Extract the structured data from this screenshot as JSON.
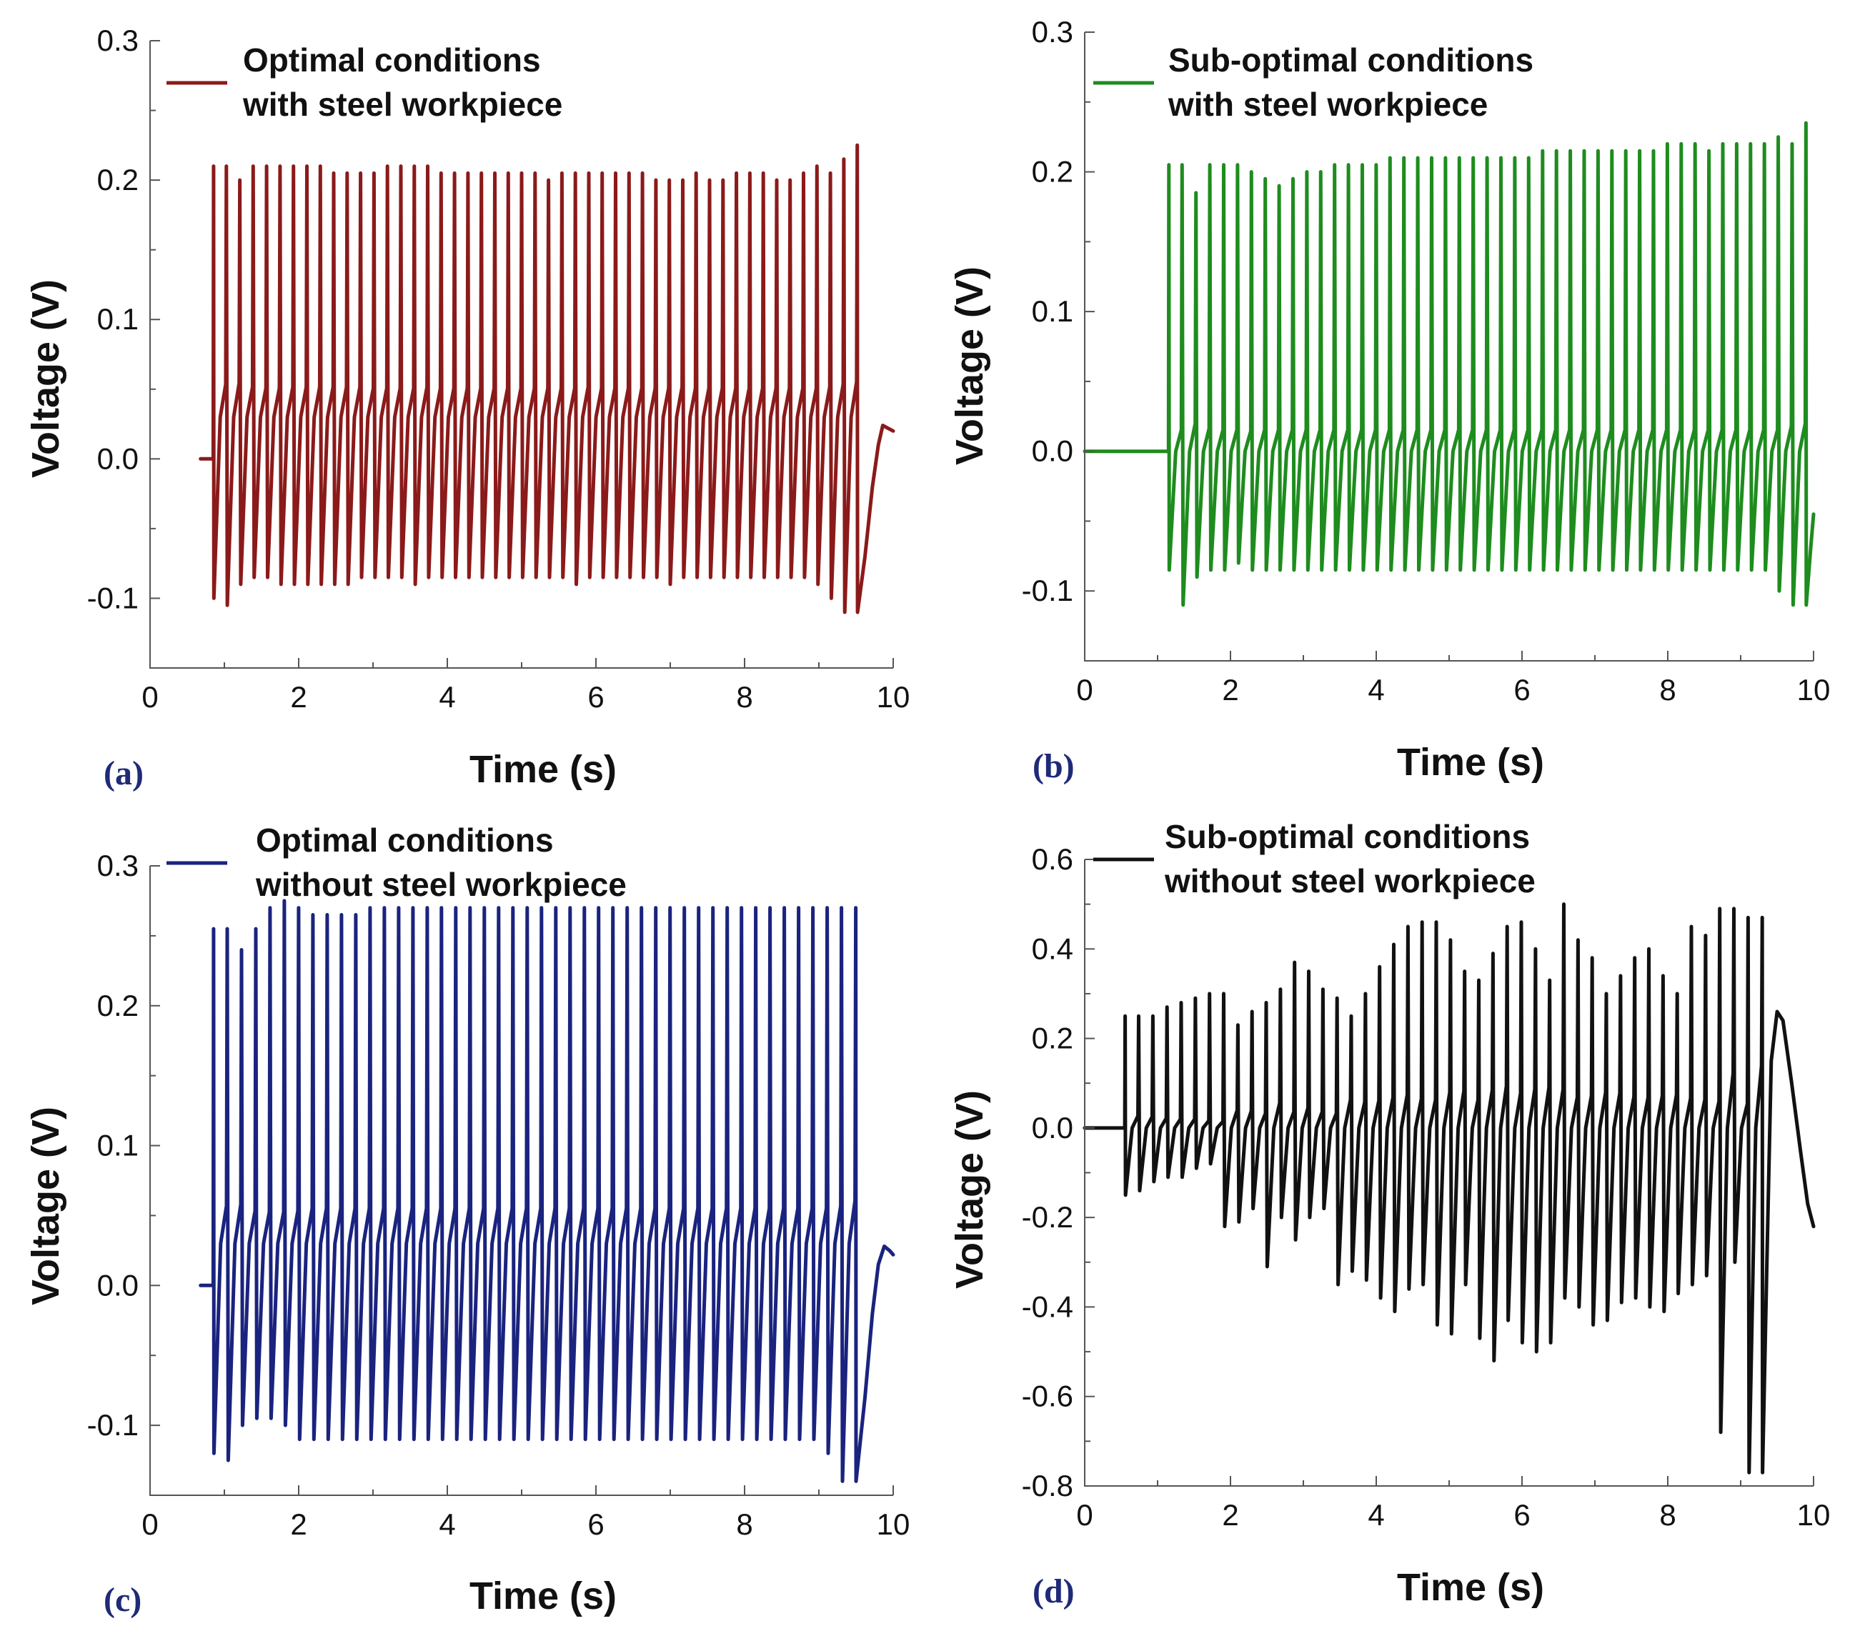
{
  "chart_data": [
    {
      "type": "line",
      "panel_label": "(a)",
      "xlabel": "Time (s)",
      "ylabel": "Voltage (V)",
      "xlim": [
        0,
        10
      ],
      "ylim": [
        -0.15,
        0.3
      ],
      "x_ticks": [
        "0",
        "2",
        "4",
        "6",
        "8",
        "10"
      ],
      "y_ticks": [
        "-0.1",
        "0.0",
        "0.1",
        "0.2",
        "0.3"
      ],
      "y_tick_values": [
        -0.1,
        0.0,
        0.1,
        0.2,
        0.3
      ],
      "color": "#8b1a1a",
      "legend": {
        "line1": "Optimal conditions",
        "line2": "with steel workpiece",
        "placement": "top-left"
      },
      "series": [
        {
          "name": "Optimal conditions with steel workpiece",
          "waveform": {
            "flat_start": 0.68,
            "flat_value": 0.0,
            "onset": 0.85,
            "end": 9.52,
            "pulse_count": 48,
            "first_peak": 0.21,
            "peaks": [
              0.21,
              0.2,
              0.21,
              0.21,
              0.21,
              0.21,
              0.21,
              0.21,
              0.205,
              0.205,
              0.205,
              0.205,
              0.21,
              0.21,
              0.21,
              0.21,
              0.205,
              0.205,
              0.205,
              0.205,
              0.205,
              0.205,
              0.205,
              0.205,
              0.2,
              0.205,
              0.205,
              0.205,
              0.205,
              0.205,
              0.205,
              0.205,
              0.2,
              0.2,
              0.2,
              0.205,
              0.2,
              0.2,
              0.205,
              0.205,
              0.205,
              0.2,
              0.2,
              0.205,
              0.21,
              0.205,
              0.215,
              0.225
            ],
            "mid_level": 0.03,
            "troughs": [
              -0.1,
              -0.105,
              -0.09,
              -0.085,
              -0.085,
              -0.09,
              -0.09,
              -0.09,
              -0.09,
              -0.09,
              -0.09,
              -0.085,
              -0.085,
              -0.085,
              -0.085,
              -0.09,
              -0.085,
              -0.085,
              -0.085,
              -0.085,
              -0.085,
              -0.085,
              -0.085,
              -0.085,
              -0.085,
              -0.085,
              -0.085,
              -0.09,
              -0.085,
              -0.085,
              -0.085,
              -0.085,
              -0.085,
              -0.085,
              -0.09,
              -0.085,
              -0.085,
              -0.085,
              -0.085,
              -0.085,
              -0.085,
              -0.085,
              -0.085,
              -0.085,
              -0.085,
              -0.09,
              -0.1,
              -0.11
            ],
            "tail": [
              [
                9.52,
                -0.11
              ],
              [
                9.62,
                -0.07
              ],
              [
                9.72,
                -0.02
              ],
              [
                9.8,
                0.01
              ],
              [
                9.86,
                0.024
              ],
              [
                9.93,
                0.022
              ],
              [
                10.0,
                0.02
              ]
            ]
          }
        }
      ]
    },
    {
      "type": "line",
      "panel_label": "(b)",
      "xlabel": "Time (s)",
      "ylabel": "Voltage (V)",
      "xlim": [
        0,
        10
      ],
      "ylim": [
        -0.15,
        0.3
      ],
      "x_ticks": [
        "0",
        "2",
        "4",
        "6",
        "8",
        "10"
      ],
      "y_ticks": [
        "-0.1",
        "0.0",
        "0.1",
        "0.2",
        "0.3"
      ],
      "y_tick_values": [
        -0.1,
        0.0,
        0.1,
        0.2,
        0.3
      ],
      "color": "#1e8c1e",
      "legend": {
        "line1": "Sub-optimal conditions",
        "line2": "with steel workpiece",
        "placement": "top-left"
      },
      "series": [
        {
          "name": "Sub-optimal conditions with steel workpiece",
          "waveform": {
            "flat_start": 0.0,
            "flat_value": 0.0,
            "onset": 1.15,
            "end": 9.9,
            "pulse_count": 46,
            "first_peak": 0.205,
            "peaks": [
              0.205,
              0.185,
              0.205,
              0.205,
              0.205,
              0.2,
              0.195,
              0.19,
              0.195,
              0.2,
              0.2,
              0.205,
              0.205,
              0.205,
              0.205,
              0.21,
              0.21,
              0.21,
              0.21,
              0.21,
              0.21,
              0.21,
              0.21,
              0.21,
              0.21,
              0.21,
              0.215,
              0.215,
              0.215,
              0.215,
              0.215,
              0.215,
              0.215,
              0.215,
              0.215,
              0.22,
              0.22,
              0.22,
              0.215,
              0.22,
              0.22,
              0.22,
              0.22,
              0.225,
              0.22,
              0.235
            ],
            "mid_level": 0.0,
            "troughs": [
              -0.085,
              -0.11,
              -0.09,
              -0.085,
              -0.085,
              -0.08,
              -0.085,
              -0.085,
              -0.085,
              -0.085,
              -0.085,
              -0.085,
              -0.085,
              -0.085,
              -0.085,
              -0.085,
              -0.085,
              -0.085,
              -0.085,
              -0.085,
              -0.085,
              -0.085,
              -0.085,
              -0.085,
              -0.085,
              -0.085,
              -0.085,
              -0.085,
              -0.085,
              -0.085,
              -0.085,
              -0.085,
              -0.085,
              -0.085,
              -0.085,
              -0.085,
              -0.085,
              -0.085,
              -0.085,
              -0.085,
              -0.085,
              -0.085,
              -0.085,
              -0.085,
              -0.1,
              -0.11
            ],
            "tail": [
              [
                9.9,
                -0.11
              ],
              [
                9.96,
                -0.07
              ],
              [
                10.0,
                -0.045
              ]
            ]
          }
        }
      ]
    },
    {
      "type": "line",
      "panel_label": "(c)",
      "xlabel": "Time (s)",
      "ylabel": "Voltage (V)",
      "xlim": [
        0,
        10
      ],
      "ylim": [
        -0.15,
        0.3
      ],
      "x_ticks": [
        "0",
        "2",
        "4",
        "6",
        "8",
        "10"
      ],
      "y_ticks": [
        "-0.1",
        "0.0",
        "0.1",
        "0.2",
        "0.3"
      ],
      "y_tick_values": [
        -0.1,
        0.0,
        0.1,
        0.2,
        0.3
      ],
      "color": "#1a237e",
      "legend": {
        "line1": "Optimal conditions",
        "line2": "without steel workpiece",
        "placement": "top-left"
      },
      "series": [
        {
          "name": "Optimal conditions without steel workpiece",
          "waveform": {
            "flat_start": 0.68,
            "flat_value": 0.0,
            "onset": 0.85,
            "end": 9.5,
            "pulse_count": 45,
            "first_peak": 0.255,
            "peaks": [
              0.255,
              0.24,
              0.255,
              0.27,
              0.275,
              0.27,
              0.265,
              0.265,
              0.265,
              0.265,
              0.27,
              0.27,
              0.27,
              0.27,
              0.27,
              0.27,
              0.27,
              0.27,
              0.27,
              0.27,
              0.27,
              0.27,
              0.27,
              0.27,
              0.27,
              0.27,
              0.27,
              0.27,
              0.27,
              0.27,
              0.27,
              0.27,
              0.27,
              0.27,
              0.27,
              0.27,
              0.27,
              0.27,
              0.27,
              0.27,
              0.27,
              0.27,
              0.27,
              0.27,
              0.27
            ],
            "mid_level": 0.03,
            "troughs": [
              -0.12,
              -0.125,
              -0.1,
              -0.095,
              -0.095,
              -0.1,
              -0.11,
              -0.11,
              -0.11,
              -0.11,
              -0.11,
              -0.11,
              -0.11,
              -0.11,
              -0.11,
              -0.11,
              -0.11,
              -0.11,
              -0.11,
              -0.11,
              -0.11,
              -0.11,
              -0.11,
              -0.11,
              -0.11,
              -0.11,
              -0.11,
              -0.11,
              -0.11,
              -0.11,
              -0.11,
              -0.11,
              -0.11,
              -0.11,
              -0.11,
              -0.11,
              -0.11,
              -0.11,
              -0.11,
              -0.11,
              -0.11,
              -0.11,
              -0.11,
              -0.12,
              -0.14
            ],
            "tail": [
              [
                9.5,
                -0.14
              ],
              [
                9.62,
                -0.08
              ],
              [
                9.72,
                -0.02
              ],
              [
                9.8,
                0.015
              ],
              [
                9.88,
                0.028
              ],
              [
                9.95,
                0.025
              ],
              [
                10.0,
                0.022
              ]
            ]
          }
        }
      ]
    },
    {
      "type": "line",
      "panel_label": "(d)",
      "xlabel": "Time (s)",
      "ylabel": "Voltage (V)",
      "xlim": [
        0,
        10
      ],
      "ylim": [
        -0.8,
        0.6
      ],
      "x_ticks": [
        "0",
        "2",
        "4",
        "6",
        "8",
        "10"
      ],
      "y_ticks": [
        "-0.8",
        "-0.6",
        "-0.4",
        "-0.2",
        "0.0",
        "0.2",
        "0.4",
        "0.6"
      ],
      "y_tick_values": [
        -0.8,
        -0.6,
        -0.4,
        -0.2,
        0.0,
        0.2,
        0.4,
        0.6
      ],
      "color": "#111111",
      "legend": {
        "line1": "Sub-optimal conditions",
        "line2": "without steel workpiece",
        "placement": "top-left"
      },
      "series": [
        {
          "name": "Sub-optimal conditions without steel workpiece",
          "waveform": {
            "flat_start": 0.0,
            "flat_value": 0.0,
            "onset": 0.55,
            "end": 9.3,
            "pulse_count": 45,
            "first_peak": 0.25,
            "peaks": [
              0.25,
              0.25,
              0.27,
              0.28,
              0.29,
              0.3,
              0.3,
              0.23,
              0.26,
              0.28,
              0.31,
              0.37,
              0.35,
              0.31,
              0.29,
              0.25,
              0.3,
              0.36,
              0.41,
              0.45,
              0.46,
              0.46,
              0.42,
              0.35,
              0.33,
              0.39,
              0.45,
              0.46,
              0.4,
              0.33,
              0.5,
              0.42,
              0.38,
              0.3,
              0.34,
              0.38,
              0.4,
              0.34,
              0.3,
              0.45,
              0.43,
              0.49,
              0.49,
              0.47,
              0.47
            ],
            "mid_level": 0.0,
            "troughs": [
              -0.15,
              -0.14,
              -0.12,
              -0.11,
              -0.11,
              -0.09,
              -0.08,
              -0.22,
              -0.21,
              -0.18,
              -0.31,
              -0.2,
              -0.25,
              -0.2,
              -0.18,
              -0.35,
              -0.32,
              -0.34,
              -0.38,
              -0.41,
              -0.36,
              -0.35,
              -0.44,
              -0.46,
              -0.35,
              -0.47,
              -0.52,
              -0.43,
              -0.48,
              -0.5,
              -0.48,
              -0.38,
              -0.4,
              -0.44,
              -0.43,
              -0.39,
              -0.38,
              -0.4,
              -0.41,
              -0.37,
              -0.35,
              -0.33,
              -0.68,
              -0.3,
              -0.77
            ],
            "tail": [
              [
                9.3,
                -0.77
              ],
              [
                9.36,
                -0.3
              ],
              [
                9.42,
                0.15
              ],
              [
                9.5,
                0.26
              ],
              [
                9.58,
                0.24
              ],
              [
                9.7,
                0.1
              ],
              [
                9.82,
                -0.05
              ],
              [
                9.92,
                -0.17
              ],
              [
                10.0,
                -0.22
              ]
            ]
          }
        }
      ]
    }
  ]
}
